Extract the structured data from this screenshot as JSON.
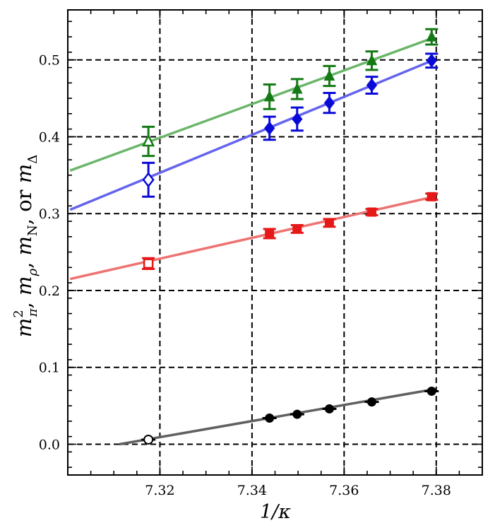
{
  "chart_data": {
    "type": "scatter",
    "xlabel": "1/κ",
    "ylabel": "m²π, mρ, mN, or mΔ",
    "ylabel_parts": {
      "m1": "m",
      "sup": "2",
      "sub1": "π",
      "sep1": ", ",
      "m2": "m",
      "sub2": "ρ",
      "sep2": ", ",
      "m3": "m",
      "sub3": "N",
      "sep3": ",  or ",
      "m4": "m",
      "sub4": "Δ"
    },
    "xlim": [
      7.3,
      7.39
    ],
    "ylim": [
      -0.04,
      0.565
    ],
    "x_ticks": [
      7.32,
      7.34,
      7.36,
      7.38
    ],
    "x_tick_labels": [
      "7.32",
      "7.34",
      "7.36",
      "7.38"
    ],
    "y_ticks": [
      0.0,
      0.1,
      0.2,
      0.3,
      0.4,
      0.5
    ],
    "y_tick_labels": [
      "0.0",
      "0.1",
      "0.2",
      "0.3",
      "0.4",
      "0.5"
    ],
    "grid": "dashed",
    "series": [
      {
        "name": "mΔ",
        "marker": "triangle",
        "color": "#157a15",
        "fit_color": "#6ab56a",
        "fit": {
          "x": [
            7.3005,
            7.3795
          ],
          "y": [
            0.356,
            0.529
          ]
        },
        "points": [
          {
            "x": 7.3175,
            "y": 0.394,
            "err": 0.019,
            "open": true
          },
          {
            "x": 7.3438,
            "y": 0.452,
            "err": 0.016,
            "open": false
          },
          {
            "x": 7.3498,
            "y": 0.462,
            "err": 0.013,
            "open": false
          },
          {
            "x": 7.3568,
            "y": 0.479,
            "err": 0.013,
            "open": false
          },
          {
            "x": 7.366,
            "y": 0.499,
            "err": 0.012,
            "open": false
          },
          {
            "x": 7.379,
            "y": 0.53,
            "err": 0.01,
            "open": false
          }
        ]
      },
      {
        "name": "mN",
        "marker": "diamond",
        "color": "#0a0ad8",
        "fit_color": "#6464ee",
        "fit": {
          "x": [
            7.3005,
            7.3795
          ],
          "y": [
            0.305,
            0.5
          ]
        },
        "points": [
          {
            "x": 7.3175,
            "y": 0.344,
            "err": 0.022,
            "open": true
          },
          {
            "x": 7.3438,
            "y": 0.411,
            "err": 0.015,
            "open": false
          },
          {
            "x": 7.3498,
            "y": 0.423,
            "err": 0.015,
            "open": false
          },
          {
            "x": 7.3568,
            "y": 0.444,
            "err": 0.013,
            "open": false
          },
          {
            "x": 7.366,
            "y": 0.467,
            "err": 0.011,
            "open": false
          },
          {
            "x": 7.379,
            "y": 0.499,
            "err": 0.009,
            "open": false
          }
        ]
      },
      {
        "name": "mρ",
        "marker": "square",
        "color": "#e61818",
        "fit_color": "#ee7272",
        "fit": {
          "x": [
            7.3005,
            7.3795
          ],
          "y": [
            0.215,
            0.322
          ]
        },
        "points": [
          {
            "x": 7.3175,
            "y": 0.235,
            "err": 0.007,
            "open": true
          },
          {
            "x": 7.3438,
            "y": 0.274,
            "err": 0.006,
            "open": false
          },
          {
            "x": 7.3498,
            "y": 0.28,
            "err": 0.005,
            "open": false
          },
          {
            "x": 7.3568,
            "y": 0.288,
            "err": 0.005,
            "open": false
          },
          {
            "x": 7.366,
            "y": 0.302,
            "err": 0.004,
            "open": false
          },
          {
            "x": 7.379,
            "y": 0.322,
            "err": 0.004,
            "open": false
          }
        ]
      },
      {
        "name": "m²π",
        "marker": "circle",
        "color": "#000000",
        "fit_color": "#606060",
        "fit": {
          "x": [
            7.3112,
            7.3795
          ],
          "y": [
            0.0,
            0.0715
          ]
        },
        "points": [
          {
            "x": 7.3175,
            "y": 0.006,
            "err": 0.0,
            "open": true
          },
          {
            "x": 7.3438,
            "y": 0.034,
            "err": 0.0,
            "open": false
          },
          {
            "x": 7.3498,
            "y": 0.039,
            "err": 0.0,
            "open": false
          },
          {
            "x": 7.3568,
            "y": 0.046,
            "err": 0.0,
            "open": false
          },
          {
            "x": 7.366,
            "y": 0.055,
            "err": 0.0,
            "open": false
          },
          {
            "x": 7.379,
            "y": 0.069,
            "err": 0.0,
            "open": false
          }
        ]
      }
    ]
  }
}
